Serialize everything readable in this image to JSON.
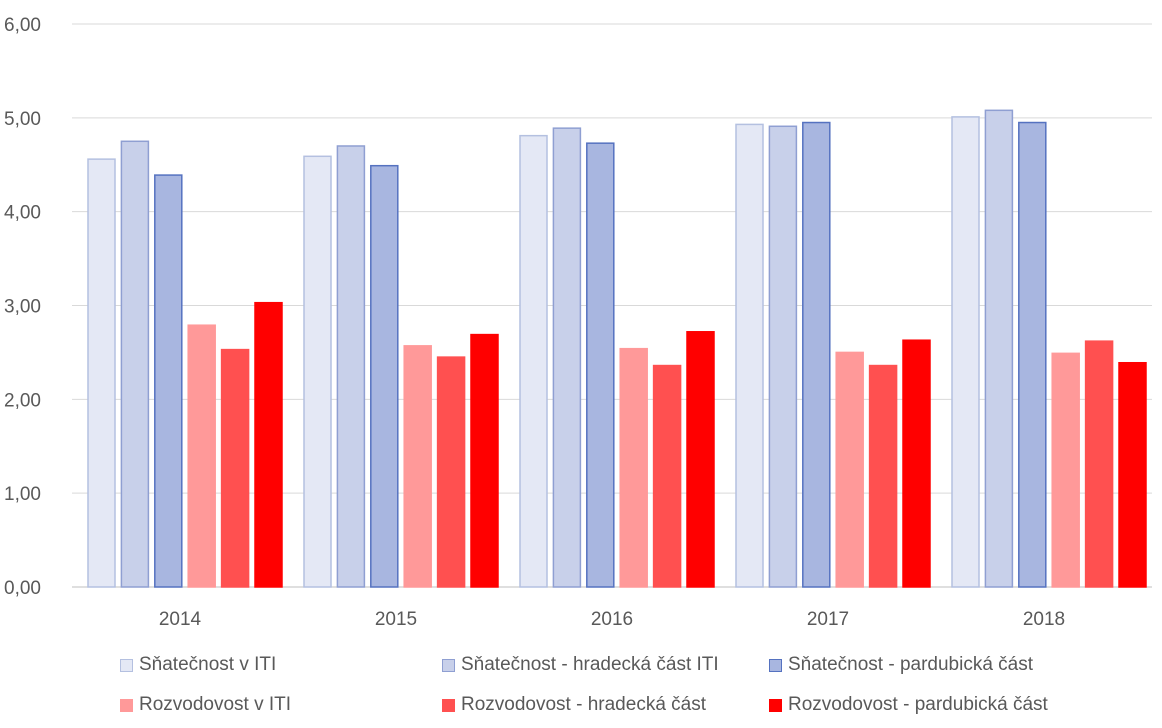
{
  "chart_data": {
    "type": "bar",
    "categories": [
      "2014",
      "2015",
      "2016",
      "2017",
      "2018"
    ],
    "series": [
      {
        "name": "Sňatečnost v ITI",
        "values": [
          4.56,
          4.59,
          4.81,
          4.93,
          5.01
        ],
        "fill": "#e4e8f5",
        "stroke": "#b4c0e0"
      },
      {
        "name": "Sňatečnost - hradecká část ITI",
        "values": [
          4.75,
          4.7,
          4.89,
          4.91,
          5.08
        ],
        "fill": "#c8d0ea",
        "stroke": "#8f9fd2"
      },
      {
        "name": "Sňatečnost - pardubická část",
        "values": [
          4.39,
          4.49,
          4.73,
          4.95,
          4.95
        ],
        "fill": "#a8b6e0",
        "stroke": "#5572c0"
      },
      {
        "name": "Rozvodovost v ITI",
        "values": [
          2.79,
          2.57,
          2.54,
          2.5,
          2.49
        ],
        "fill": "#ff9999",
        "stroke": "#ff9999"
      },
      {
        "name": "Rozvodovost - hradecká část",
        "values": [
          2.53,
          2.45,
          2.36,
          2.36,
          2.62
        ],
        "fill": "#ff5050",
        "stroke": "#ff5050"
      },
      {
        "name": "Rozvodovost - pardubická část",
        "values": [
          3.03,
          2.69,
          2.72,
          2.63,
          2.39
        ],
        "fill": "#ff0000",
        "stroke": "#ff0000"
      }
    ],
    "y_ticks": [
      "0,00",
      "1,00",
      "2,00",
      "3,00",
      "4,00",
      "5,00",
      "6,00"
    ],
    "ylim": [
      0,
      6
    ],
    "grid": true,
    "legend_position": "bottom"
  }
}
